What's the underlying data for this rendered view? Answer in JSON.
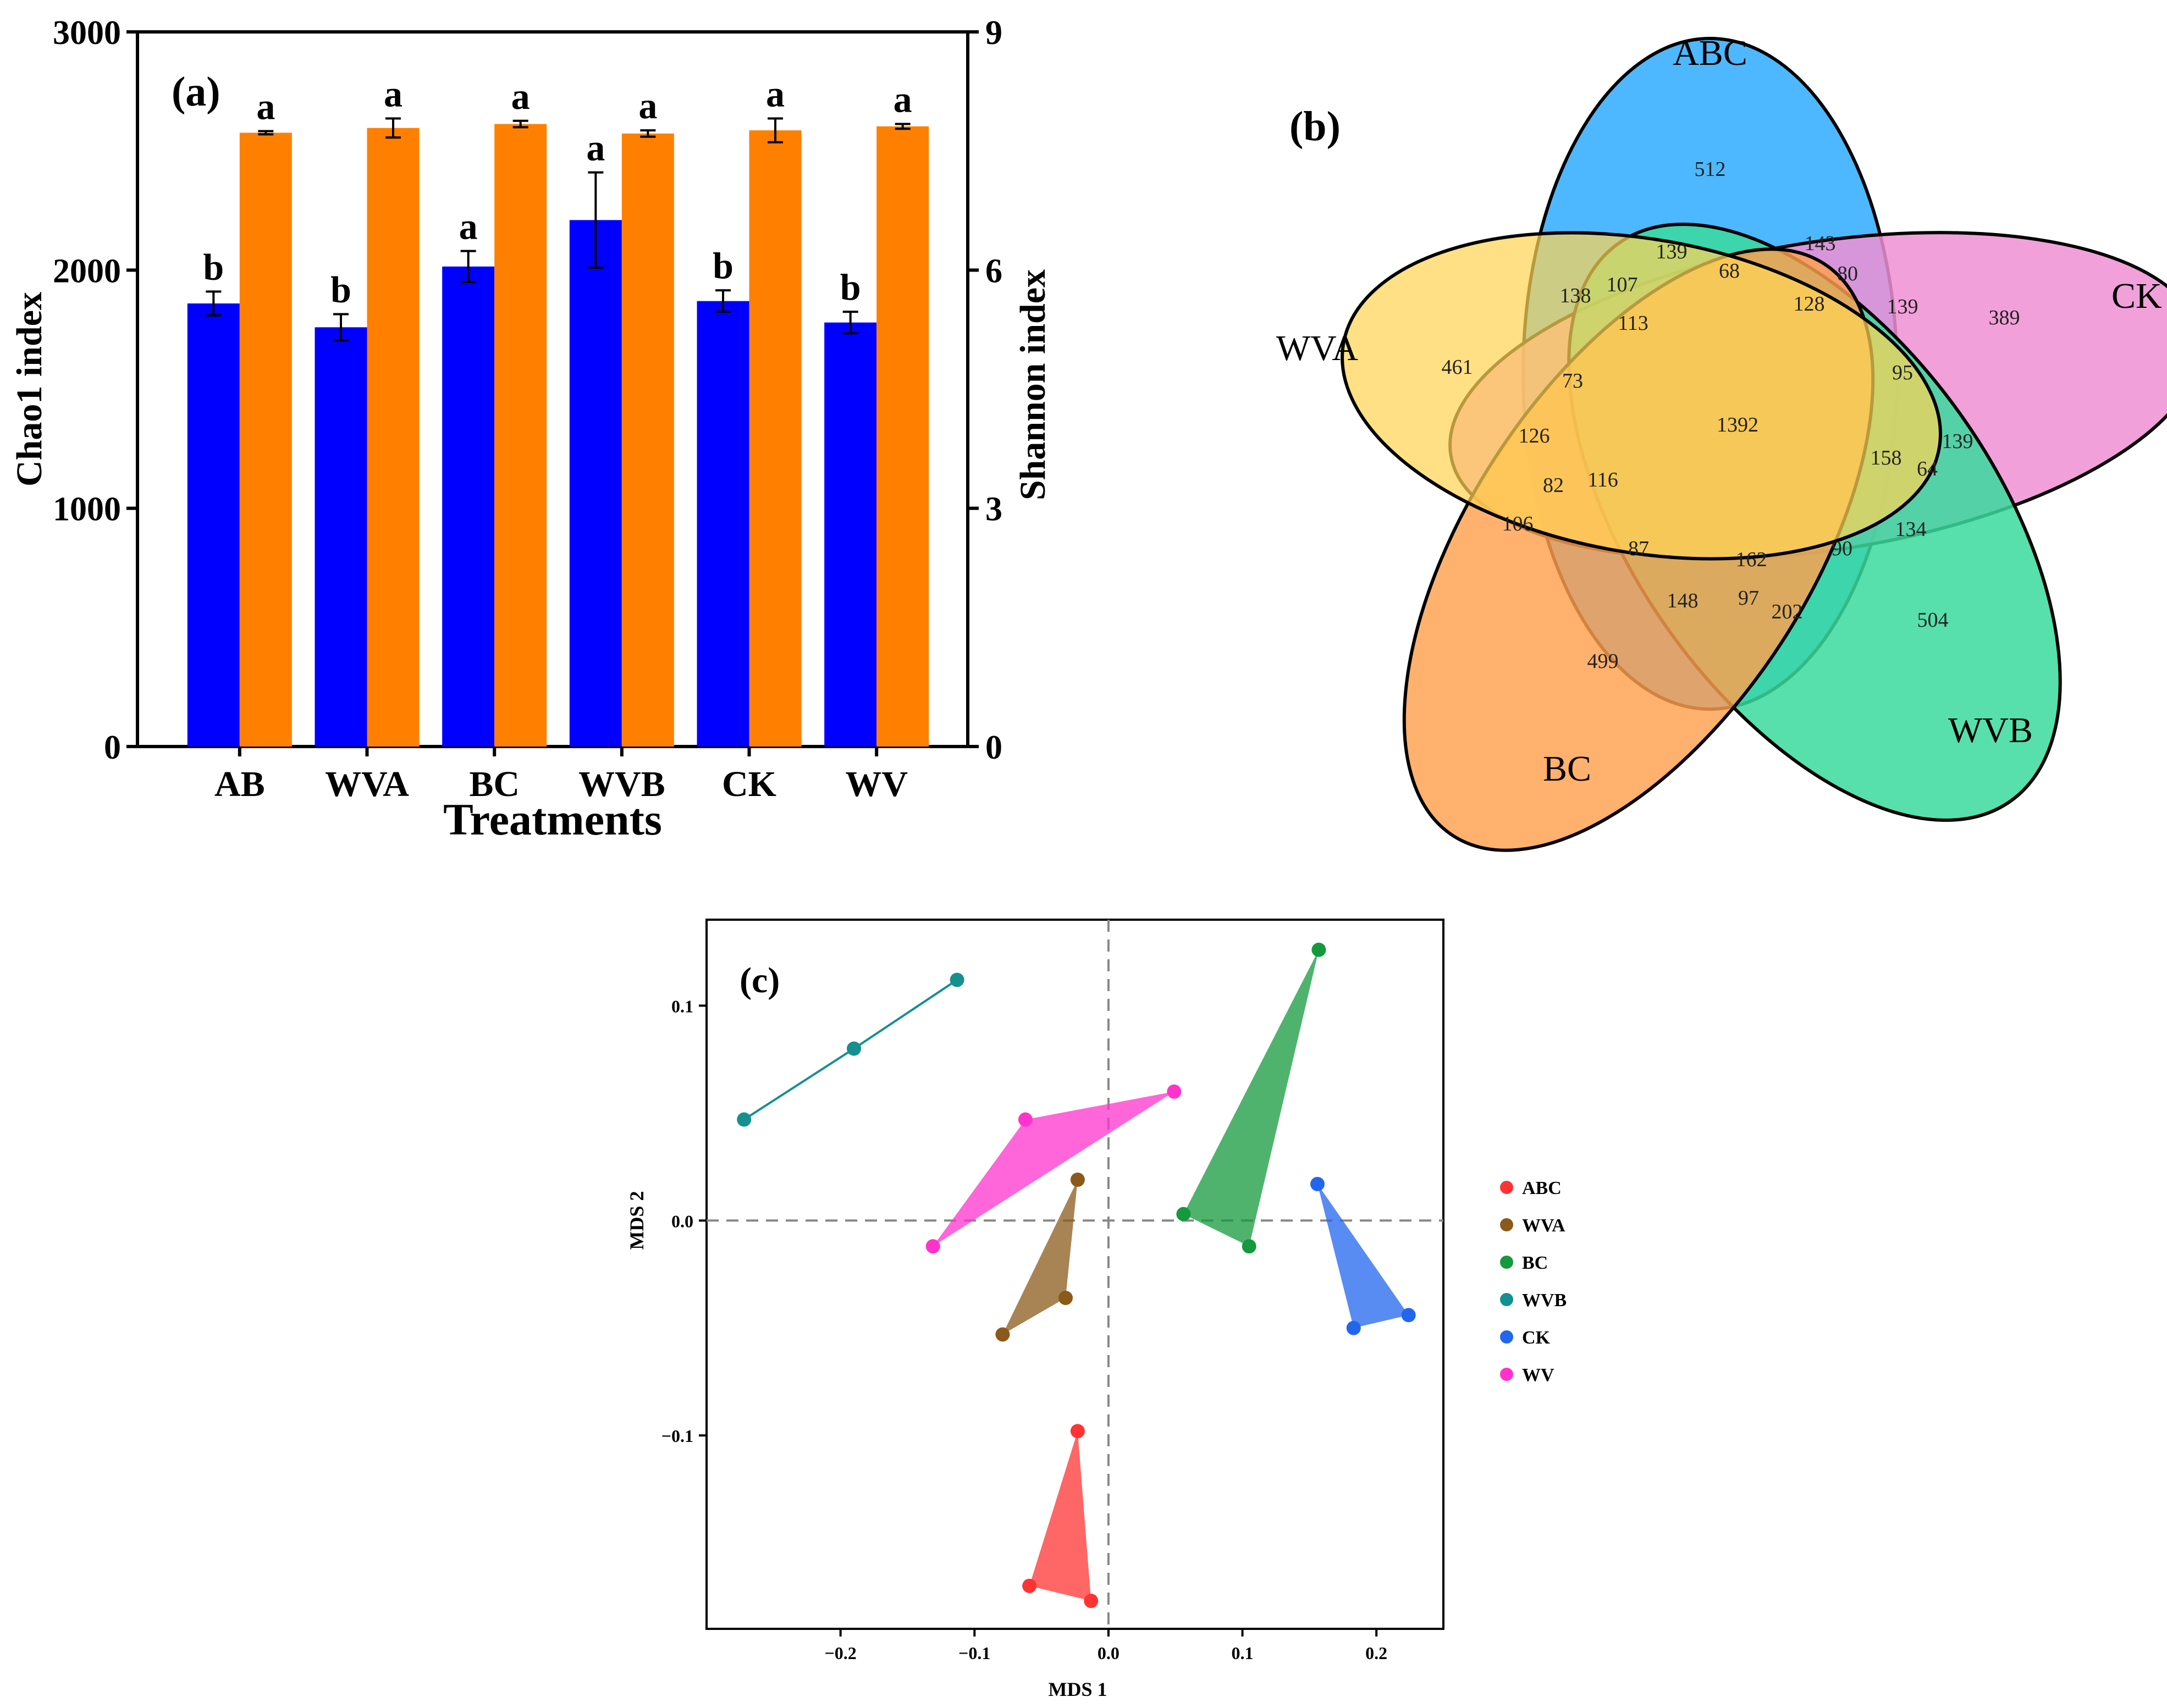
{
  "chart_data": [
    {
      "panel": "(a)",
      "type": "bar",
      "title": "",
      "xlabel": "Treatments",
      "ylabel": "Chao1 index",
      "y2label": "Shannon index",
      "categories": [
        "AB",
        "WVA",
        "BC",
        "WVB",
        "CK",
        "WV"
      ],
      "ylim": [
        0,
        3000
      ],
      "y2lim": [
        0,
        9
      ],
      "yticks": [
        "0",
        "1000",
        "2000",
        "3000"
      ],
      "y2ticks": [
        "0",
        "3",
        "6",
        "9"
      ],
      "series": [
        {
          "name": "Chao1",
          "axis": "left",
          "color": "#0000ff",
          "values": [
            1860,
            1760,
            2015,
            2210,
            1870,
            1780
          ],
          "errors": [
            50,
            55,
            65,
            200,
            45,
            45
          ],
          "letters": [
            "b",
            "b",
            "a",
            "a",
            "b",
            "b"
          ]
        },
        {
          "name": "Shannon",
          "axis": "right",
          "color": "#ff8000",
          "values": [
            7.73,
            7.79,
            7.84,
            7.72,
            7.76,
            7.81
          ],
          "errors": [
            0.02,
            0.12,
            0.04,
            0.04,
            0.15,
            0.03
          ],
          "letters": [
            "a",
            "a",
            "a",
            "a",
            "a",
            "a"
          ]
        }
      ]
    },
    {
      "panel": "(b)",
      "type": "venn",
      "sets": [
        {
          "name": "ABC",
          "color": "#4db8ff"
        },
        {
          "name": "CK",
          "color": "#f49ad8"
        },
        {
          "name": "WVB",
          "color": "#4ddba6"
        },
        {
          "name": "BC",
          "color": "#ffad5c"
        },
        {
          "name": "WVA",
          "color": "#ffd966"
        }
      ],
      "counts": [
        "512",
        "389",
        "504",
        "499",
        "461",
        "1392",
        "139",
        "143",
        "68",
        "80",
        "139",
        "128",
        "138",
        "107",
        "113",
        "73",
        "95",
        "126",
        "158",
        "139",
        "64",
        "82",
        "116",
        "106",
        "87",
        "162",
        "90",
        "134",
        "148",
        "97",
        "202"
      ]
    },
    {
      "panel": "(c)",
      "type": "scatter",
      "xlabel": "MDS 1",
      "ylabel": "MDS 2",
      "xlim": [
        -0.3,
        0.25
      ],
      "ylim": [
        -0.19,
        0.14
      ],
      "xticks": [
        -0.2,
        -0.1,
        0.0,
        0.1,
        0.2
      ],
      "yticks": [
        -0.1,
        0.0,
        0.1
      ],
      "xtick_labels": [
        "−0.2",
        "−0.1",
        "0.0",
        "0.1",
        "0.2"
      ],
      "ytick_labels": [
        "−0.1",
        "0.0",
        "0.1"
      ],
      "legend_position": "right",
      "series": [
        {
          "name": "ABC",
          "color": "#ff3333",
          "points": [
            [
              -0.023,
              -0.098
            ],
            [
              -0.013,
              -0.177
            ],
            [
              -0.059,
              -0.17
            ]
          ]
        },
        {
          "name": "WVA",
          "color": "#8b5a1a",
          "points": [
            [
              -0.023,
              0.019
            ],
            [
              -0.079,
              -0.053
            ],
            [
              -0.032,
              -0.036
            ]
          ]
        },
        {
          "name": "BC",
          "color": "#149a3c",
          "points": [
            [
              0.157,
              0.126
            ],
            [
              0.056,
              0.003
            ],
            [
              0.105,
              -0.012
            ]
          ]
        },
        {
          "name": "WVB",
          "color": "#159090",
          "points": [
            [
              -0.272,
              0.047
            ],
            [
              -0.19,
              0.08
            ],
            [
              -0.113,
              0.112
            ]
          ]
        },
        {
          "name": "CK",
          "color": "#2266ee",
          "points": [
            [
              0.156,
              0.017
            ],
            [
              0.224,
              -0.044
            ],
            [
              0.183,
              -0.05
            ]
          ]
        },
        {
          "name": "WV",
          "color": "#ff33cc",
          "points": [
            [
              0.049,
              0.06
            ],
            [
              -0.131,
              -0.012
            ],
            [
              -0.062,
              0.047
            ]
          ]
        }
      ]
    }
  ]
}
